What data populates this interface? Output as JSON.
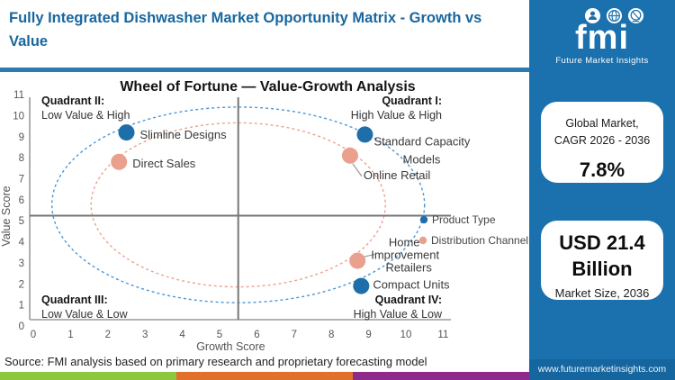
{
  "header": {
    "title": "Fully Integrated Dishwasher Market Opportunity Matrix - Growth vs Value",
    "accent_color": "#19679d",
    "border_color": "#2b7cb3"
  },
  "sidebar": {
    "bg_color": "#1a71ae",
    "logo": {
      "text": "fmi",
      "subtext": "Future Market Insights"
    },
    "cards": [
      {
        "line1": "Global Market,",
        "line2": "CAGR 2026 - 2036",
        "value": "7.8%"
      },
      {
        "value_line1": "USD 21.4",
        "value_line2": "Billion",
        "label": "Market Size, 2036"
      }
    ],
    "website": "www.futuremarketinsights.com"
  },
  "footer": {
    "source": "Source: FMI analysis based on primary research and proprietary forecasting model",
    "strip_colors": [
      "#8dc63f",
      "#e1702d",
      "#8e2a8c"
    ]
  },
  "chart_data": {
    "type": "scatter",
    "title": "Wheel of Fortune — Value-Growth Analysis",
    "xlabel": "Growth Score",
    "ylabel": "Value Score",
    "xlim": [
      0,
      11
    ],
    "ylim": [
      0,
      11
    ],
    "xticks": [
      0,
      1,
      2,
      3,
      4,
      5,
      6,
      7,
      8,
      9,
      10,
      11
    ],
    "yticks": [
      0,
      1,
      2,
      3,
      4,
      5,
      6,
      7,
      8,
      9,
      10,
      11
    ],
    "grid": false,
    "quadrant_center": {
      "x": 5.5,
      "y": 5.5
    },
    "quadrants": [
      {
        "name": "Quadrant I:",
        "desc": "High Value & High",
        "pos": "top-right"
      },
      {
        "name": "Quadrant II:",
        "desc": "Low Value & High",
        "pos": "top-left"
      },
      {
        "name": "Quadrant III:",
        "desc": "Low Value & Low",
        "pos": "bottom-left"
      },
      {
        "name": "Quadrant IV:",
        "desc": "High Value & Low",
        "pos": "bottom-right"
      }
    ],
    "rings": [
      {
        "series": "Product Type",
        "color": "#4e96d3",
        "rx": 5.0,
        "ry": 4.65
      },
      {
        "series": "Distribution Channel",
        "color": "#eba391",
        "rx": 3.95,
        "ry": 3.9
      }
    ],
    "series": [
      {
        "name": "Product Type",
        "color": "#1e6fa9",
        "points": [
          {
            "label": "Slimline Designs",
            "x": 2.5,
            "y": 9.2
          },
          {
            "label": "Standard Capacity Models",
            "x": 8.9,
            "y": 9.1
          },
          {
            "label": "Compact Units",
            "x": 8.8,
            "y": 1.9
          }
        ]
      },
      {
        "name": "Distribution Channel",
        "color": "#e9a08d",
        "points": [
          {
            "label": "Direct Sales",
            "x": 2.3,
            "y": 7.8
          },
          {
            "label": "Online Retail",
            "x": 8.5,
            "y": 8.1
          },
          {
            "label": "Home Improvement Retailers",
            "x": 8.7,
            "y": 3.1
          }
        ]
      }
    ],
    "legend": [
      {
        "label": "Product Type",
        "color": "#1e6fa9"
      },
      {
        "label": "Distribution Channel",
        "color": "#e9a08d"
      }
    ],
    "legend_position": "right-middle-inside"
  }
}
